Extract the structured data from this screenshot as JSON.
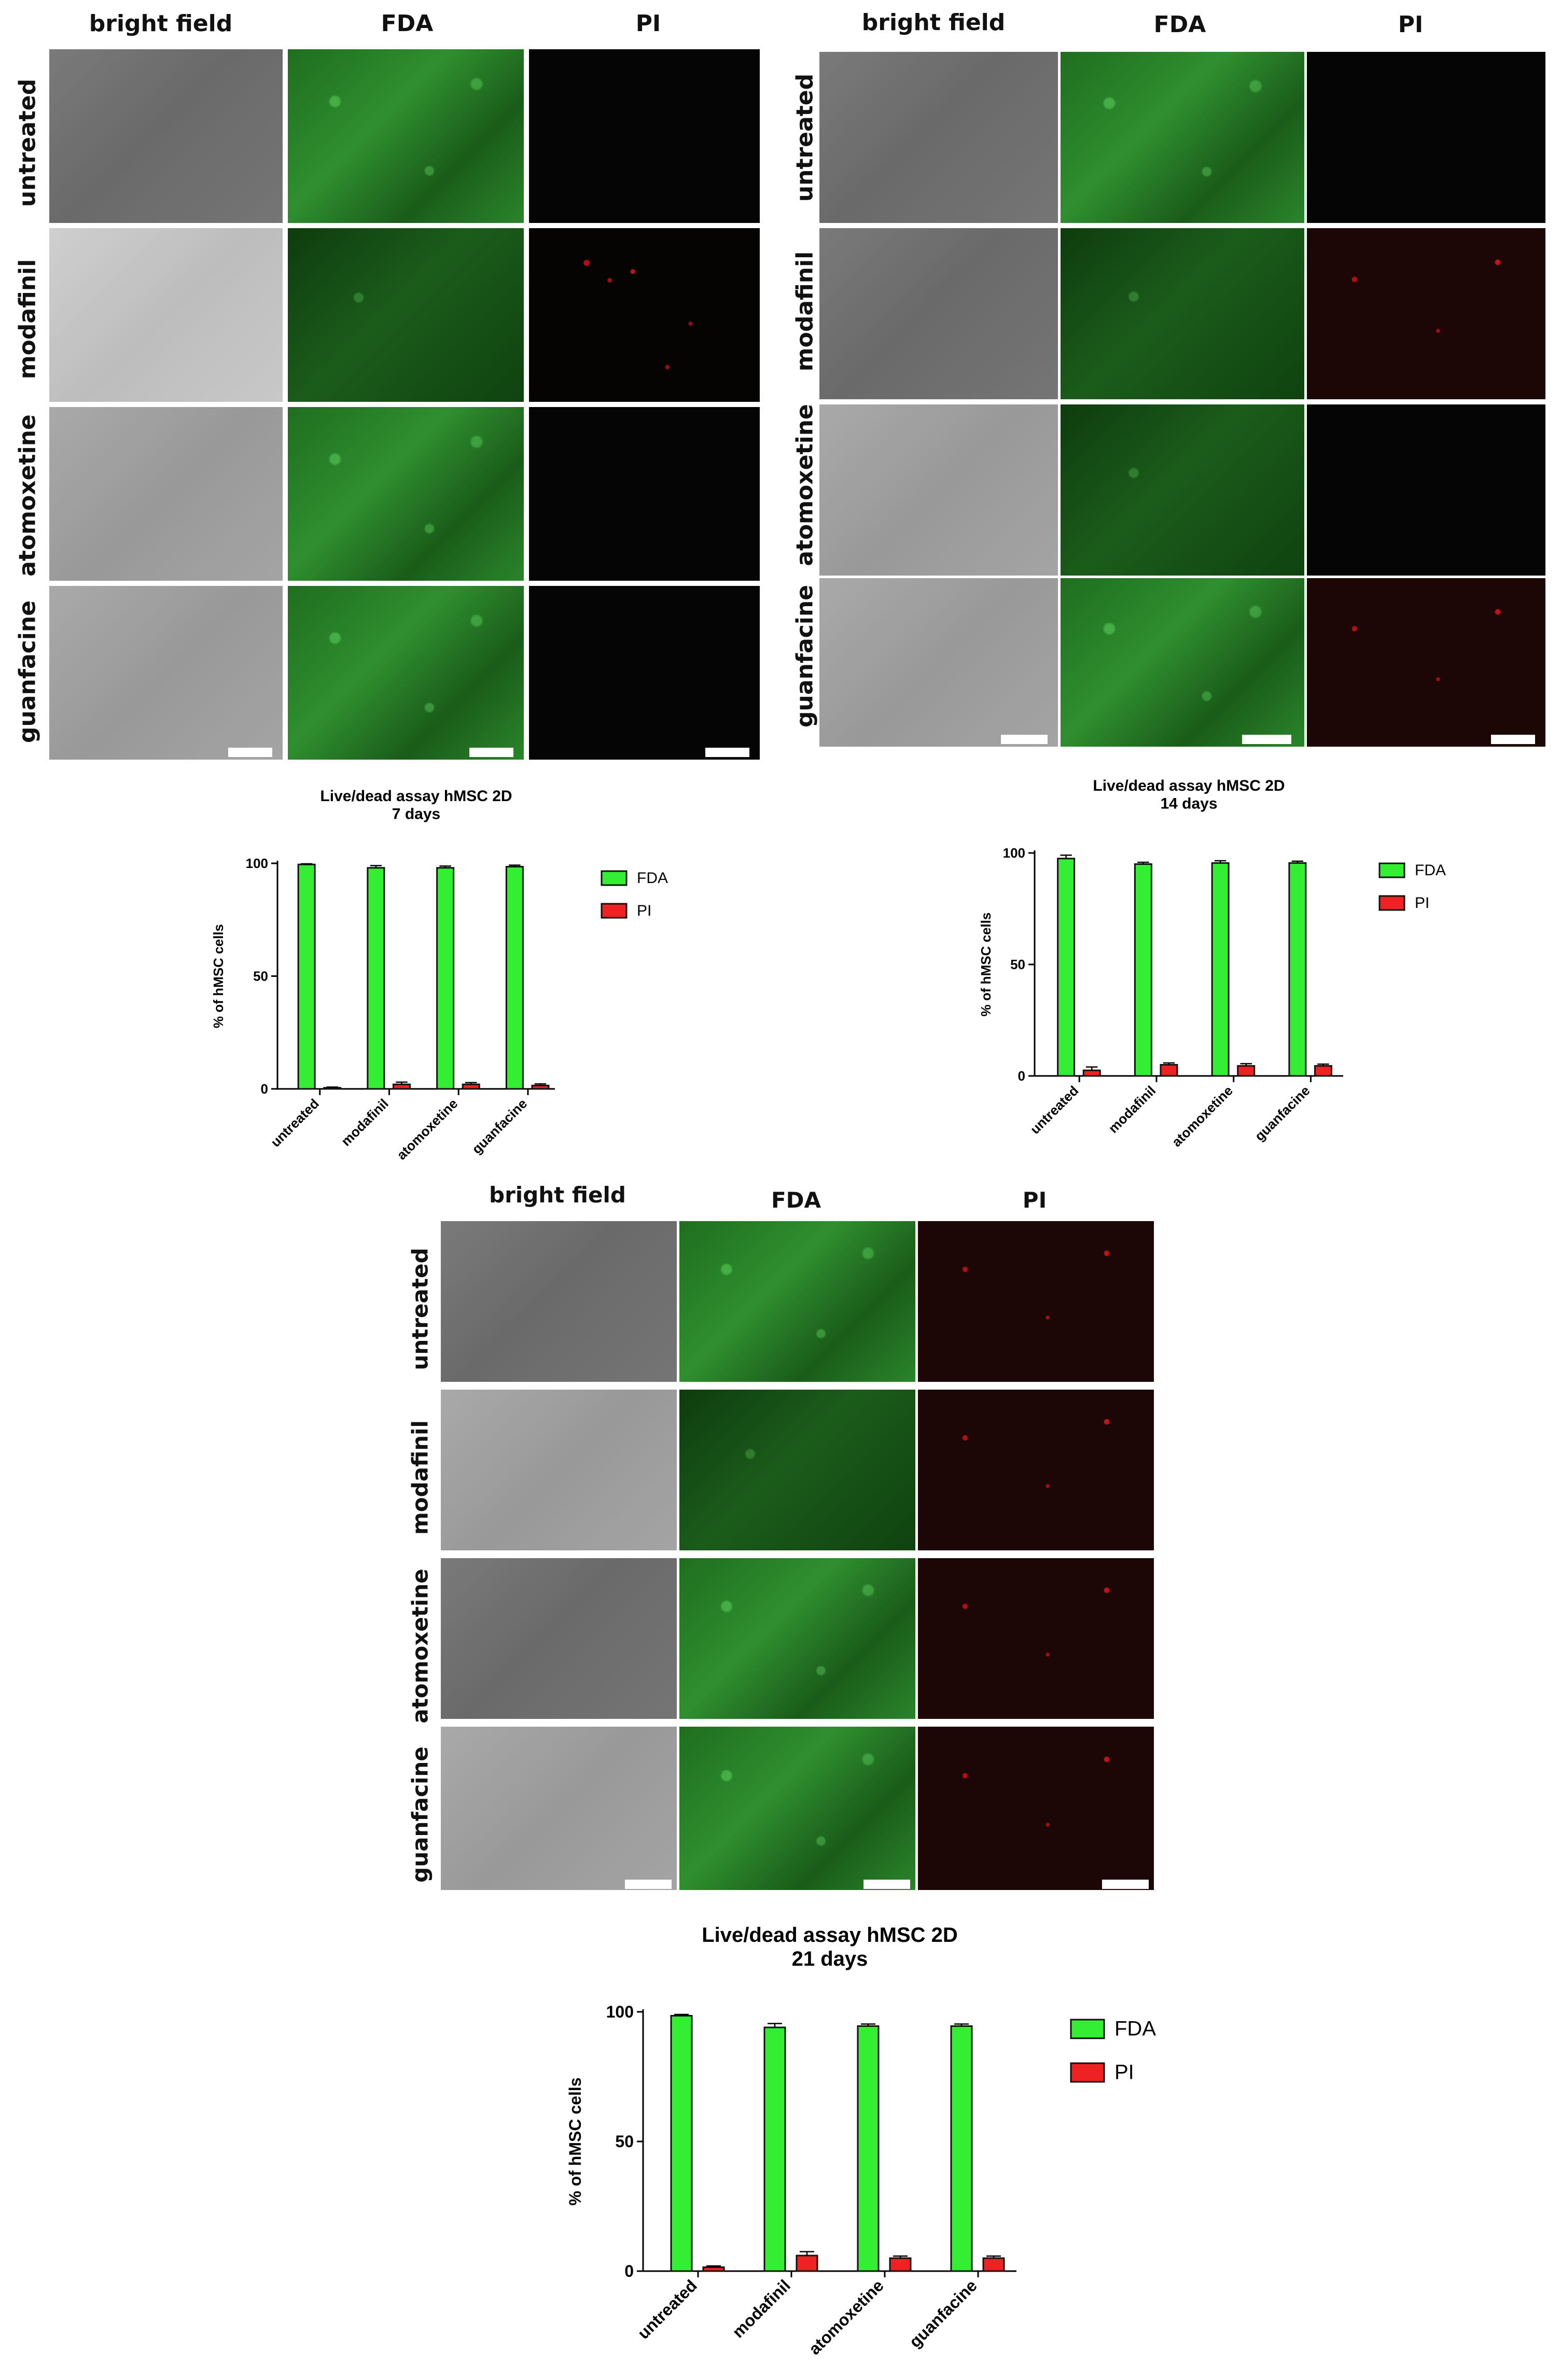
{
  "figure_a": {
    "col_labels": [
      "bright field",
      "FDA",
      "PI"
    ],
    "row_labels": [
      "untreated",
      "modafinil",
      "atomoxetine",
      "guanfacine"
    ]
  },
  "figure_b": {
    "col_labels": [
      "bright field",
      "FDA",
      "PI"
    ],
    "row_labels": [
      "untreated",
      "modafinil",
      "atomoxetine",
      "guanfacine"
    ]
  },
  "figure_c": {
    "col_labels": [
      "bright field",
      "FDA",
      "PI"
    ],
    "row_labels": [
      "untreated",
      "modafinil",
      "atomoxetine",
      "guanfacine"
    ]
  },
  "colors": {
    "fda": "#33ee33",
    "pi": "#ee2222",
    "bar_stroke": "#111111"
  },
  "chart_data": [
    {
      "type": "bar",
      "title": "Live/dead assay hMSC 2D",
      "subtitle": "7 days",
      "ylabel": "% of hMSC cells",
      "ylim": [
        0,
        100
      ],
      "yticks": [
        "0",
        "50",
        "100"
      ],
      "categories": [
        "untreated",
        "modafinil",
        "atomoxetine",
        "guanfacine"
      ],
      "series": [
        {
          "name": "FDA",
          "values": [
            99.5,
            98,
            98,
            98.5
          ],
          "errors": [
            0.3,
            1,
            0.8,
            0.7
          ]
        },
        {
          "name": "PI",
          "values": [
            0.5,
            2,
            2,
            1.5
          ],
          "errors": [
            0.3,
            1,
            0.8,
            0.7
          ]
        }
      ],
      "legend": "right"
    },
    {
      "type": "bar",
      "title": "Live/dead assay hMSC 2D",
      "subtitle": "14 days",
      "ylabel": "% of hMSC cells",
      "ylim": [
        0,
        100
      ],
      "yticks": [
        "0",
        "50",
        "100"
      ],
      "categories": [
        "untreated",
        "modafinil",
        "atomoxetine",
        "guanfacine"
      ],
      "series": [
        {
          "name": "FDA",
          "values": [
            97.5,
            95,
            95.5,
            95.5
          ],
          "errors": [
            1.5,
            0.8,
            1,
            0.8
          ]
        },
        {
          "name": "PI",
          "values": [
            2.5,
            5,
            4.5,
            4.5
          ],
          "errors": [
            1.5,
            0.8,
            1,
            0.8
          ]
        }
      ],
      "legend": "right"
    },
    {
      "type": "bar",
      "title": "Live/dead assay hMSC 2D",
      "subtitle": "21 days",
      "ylabel": "% of hMSC cells",
      "ylim": [
        0,
        100
      ],
      "yticks": [
        "0",
        "50",
        "100"
      ],
      "categories": [
        "untreated",
        "modafinil",
        "atomoxetine",
        "guanfacine"
      ],
      "series": [
        {
          "name": "FDA",
          "values": [
            98.5,
            94,
            94.5,
            94.5
          ],
          "errors": [
            0.5,
            1.5,
            0.8,
            0.8
          ]
        },
        {
          "name": "PI",
          "values": [
            1.5,
            6,
            5,
            5
          ],
          "errors": [
            0.5,
            1.5,
            0.8,
            0.8
          ]
        }
      ],
      "legend": "right"
    }
  ]
}
